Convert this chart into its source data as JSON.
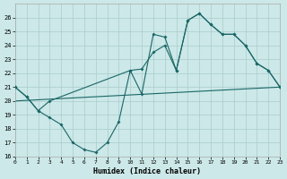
{
  "bg_color": "#cce8e8",
  "grid_color": "#aacccc",
  "line_color": "#1a6666",
  "xlim": [
    0,
    23
  ],
  "ylim": [
    16,
    27
  ],
  "xlabel": "Humidex (Indice chaleur)",
  "line1_x": [
    0,
    1,
    2,
    3,
    4,
    5,
    6,
    7,
    8,
    9,
    10,
    11,
    12,
    13,
    14,
    15,
    16,
    17,
    18,
    19,
    20,
    21,
    22,
    23
  ],
  "line1_y": [
    21,
    20.3,
    19.3,
    18.8,
    18.3,
    17.0,
    16.5,
    16.3,
    17.0,
    18.5,
    22.2,
    20.5,
    24.8,
    24.6,
    22.2,
    25.8,
    26.3,
    25.5,
    24.8,
    24.8,
    24.0,
    22.7,
    22.2,
    21.0
  ],
  "line2_x": [
    0,
    1,
    2,
    3,
    10,
    11,
    12,
    13,
    14,
    15,
    16,
    17,
    18,
    19,
    20,
    21,
    22,
    23
  ],
  "line2_y": [
    21,
    20.3,
    19.3,
    20.0,
    22.2,
    22.3,
    23.5,
    24.0,
    22.2,
    25.8,
    26.3,
    25.5,
    24.8,
    24.8,
    24.0,
    22.7,
    22.2,
    21.0
  ],
  "line3_x": [
    0,
    23
  ],
  "line3_y": [
    20.0,
    21.0
  ]
}
